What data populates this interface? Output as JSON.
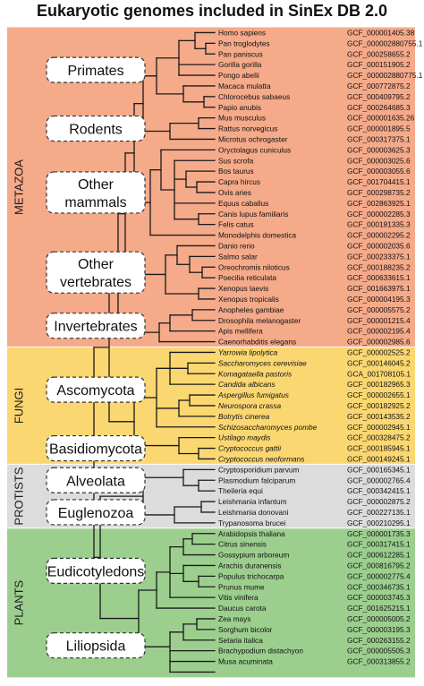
{
  "title": "Eukaryotic genomes included in SinEx DB 2.0",
  "colors": {
    "metazoa": "#f5aa8a",
    "fungi": "#fbd772",
    "protists": "#dcdcdc",
    "plants": "#9ccf8e",
    "line": "#1a1a1a"
  },
  "kingdoms": [
    {
      "name": "METAZOA",
      "color_key": "metazoa"
    },
    {
      "name": "FUNGI",
      "color_key": "fungi"
    },
    {
      "name": "PROTISTS",
      "color_key": "protists"
    },
    {
      "name": "PLANTS",
      "color_key": "plants"
    }
  ],
  "groups": [
    {
      "label": [
        "Primates"
      ]
    },
    {
      "label": [
        "Rodents"
      ]
    },
    {
      "label": [
        "Other",
        "mammals"
      ]
    },
    {
      "label": [
        "Other",
        "vertebrates"
      ]
    },
    {
      "label": [
        "Invertebrates"
      ]
    },
    {
      "label": [
        "Ascomycota"
      ]
    },
    {
      "label": [
        "Basidiomycota"
      ]
    },
    {
      "label": [
        "Alveolata"
      ]
    },
    {
      "label": [
        "Euglenozoa"
      ]
    },
    {
      "label": [
        "Eudicotyledons"
      ]
    },
    {
      "label": [
        "Liliopsida"
      ]
    }
  ],
  "species": [
    {
      "name": "Homo sapiens",
      "accession": "GCF_000001405.38",
      "italic": false
    },
    {
      "name": "Pan troglodytes",
      "accession": "GCF_000002880755.1",
      "italic": false
    },
    {
      "name": "Pan paniscus",
      "accession": "GCF_000258655.2",
      "italic": false
    },
    {
      "name": "Gorilla gorilla",
      "accession": "GCF_000151905.2",
      "italic": false
    },
    {
      "name": "Pongo abelii",
      "accession": "GCF_000002880775.1",
      "italic": false
    },
    {
      "name": "Macaca mulatta",
      "accession": "GCF_000772875.2",
      "italic": false
    },
    {
      "name": "Chlorocebus sabaeus",
      "accession": "GCF_000409795.2",
      "italic": false
    },
    {
      "name": "Papio anubis",
      "accession": "GCF_000264685.3",
      "italic": false
    },
    {
      "name": "Mus musculus",
      "accession": "GCF_000001635.26",
      "italic": false
    },
    {
      "name": "Rattus norvegicus",
      "accession": "GCF_000001895.5",
      "italic": false
    },
    {
      "name": "Microtus ochrogaster",
      "accession": "GCF_000317375.1",
      "italic": false
    },
    {
      "name": "Oryctolagus cuniculus",
      "accession": "GCF_000003625.3",
      "italic": false
    },
    {
      "name": "Sus scrofa",
      "accession": "GCF_000003025.6",
      "italic": false
    },
    {
      "name": "Bos taurus",
      "accession": "GCF_000003055.6",
      "italic": false
    },
    {
      "name": "Capra hircus",
      "accession": "GCF_001704415.1",
      "italic": false
    },
    {
      "name": "Ovis aries",
      "accession": "GCF_000298735.2",
      "italic": false
    },
    {
      "name": "Equus caballus",
      "accession": "GCF_002863925.1",
      "italic": false
    },
    {
      "name": "Canis lupus familiaris",
      "accession": "GCF_000002285.3",
      "italic": false
    },
    {
      "name": "Felis catus",
      "accession": "GCF_000181335.3",
      "italic": false
    },
    {
      "name": "Monodelphis domestica",
      "accession": "GCF_000002295.2",
      "italic": false
    },
    {
      "name": "Danio rerio",
      "accession": "GCF_000002035.6",
      "italic": false
    },
    {
      "name": "Salmo salar",
      "accession": "GCF_000233375.1",
      "italic": false
    },
    {
      "name": "Oreochromis niloticus",
      "accession": "GCF_000188235.2",
      "italic": false
    },
    {
      "name": "Poecilia reticulata",
      "accession": "GCF_000633615.1",
      "italic": false
    },
    {
      "name": "Xenopus laevis",
      "accession": "GCF_001663975.1",
      "italic": false
    },
    {
      "name": "Xenopus tropicalis",
      "accession": "GCF_000004195.3",
      "italic": false
    },
    {
      "name": "Anopheles gambiae",
      "accession": "GCF_000005575.2",
      "italic": false
    },
    {
      "name": "Drosophila melanogaster",
      "accession": "GCF_000001215.4",
      "italic": false
    },
    {
      "name": "Apis mellifera",
      "accession": "GCF_000002195.4",
      "italic": false
    },
    {
      "name": "Caenorhabditis elegans",
      "accession": "GCF_000002985.6",
      "italic": false
    },
    {
      "name": "Yarrowia lipolytica",
      "accession": "GCF_000002525.2",
      "italic": true
    },
    {
      "name": "Saccharomyces cerevisiae",
      "accession": "GCF_000146045.2",
      "italic": true
    },
    {
      "name": "Komagataella pastoris",
      "accession": "GCA_001708105.1",
      "italic": true
    },
    {
      "name": "Candida albicans",
      "accession": "GCF_000182965.3",
      "italic": true
    },
    {
      "name": "Aspergillus fumigatus",
      "accession": "GCF_000002655.1",
      "italic": true
    },
    {
      "name": "Neurospora crassa",
      "accession": "GCF_000182925.2",
      "italic": true
    },
    {
      "name": "Botrytis cinerea",
      "accession": "GCF_000143535.2",
      "italic": true
    },
    {
      "name": "Schizosaccharomyces pombe",
      "accession": "GCF_000002945.1",
      "italic": true
    },
    {
      "name": "Ustilago maydis",
      "accession": "GCF_000328475.2",
      "italic": true
    },
    {
      "name": "Cryptococcus gattii",
      "accession": "GCF_000185945.1",
      "italic": true
    },
    {
      "name": "Cryptococcus neoformans",
      "accession": "GCF_000149245.1",
      "italic": true
    },
    {
      "name": "Cryptosporidium parvum",
      "accession": "GCF_000165345.1",
      "italic": false
    },
    {
      "name": "Plasmodium falciparum",
      "accession": "GCF_000002765.4",
      "italic": false
    },
    {
      "name": "Theileria equi",
      "accession": "GCF_000342415.1",
      "italic": false
    },
    {
      "name": "Leishmania infantum",
      "accession": "GCF_000002875.2",
      "italic": false
    },
    {
      "name": "Leishmania donovani",
      "accession": "GCF_000227135.1",
      "italic": false
    },
    {
      "name": "Trypanosoma brucei",
      "accession": "GCF_000210295.1",
      "italic": false
    },
    {
      "name": "Arabidopsis thaliana",
      "accession": "GCF_000001735.3",
      "italic": false
    },
    {
      "name": "Citrus sinensis",
      "accession": "GCF_000317415.1",
      "italic": false
    },
    {
      "name": "Gossypium arboreum",
      "accession": "GCF_000612285.1",
      "italic": false
    },
    {
      "name": "Arachis duranensis",
      "accession": "GCF_000816795.2",
      "italic": false
    },
    {
      "name": "Populus trichocarpa",
      "accession": "GCF_000002775.4",
      "italic": false
    },
    {
      "name": "Prunus mume",
      "accession": "GCF_000346735.1",
      "italic": false
    },
    {
      "name": "Vitis vinifera",
      "accession": "GCF_000003745.3",
      "italic": false
    },
    {
      "name": "Daucus carota",
      "accession": "GCF_001625215.1",
      "italic": false
    },
    {
      "name": "Zea mays",
      "accession": "GCF_000005005.2",
      "italic": false
    },
    {
      "name": "Sorghum bicolor",
      "accession": "GCF_000003195.3",
      "italic": false
    },
    {
      "name": "Setaria italica",
      "accession": "GCF_000263155.2",
      "italic": false
    },
    {
      "name": "Brachypodium distachyon",
      "accession": "GCF_000005505.3",
      "italic": false
    },
    {
      "name": "Musa acuminata",
      "accession": "GCF_000313855.2",
      "italic": false
    }
  ]
}
